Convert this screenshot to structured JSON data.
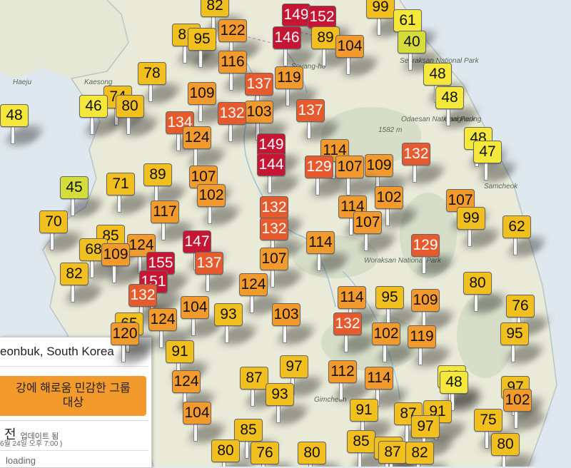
{
  "colors": {
    "good": "#f5e83a",
    "moderate": "#f2c01e",
    "usg": "#f39a2c",
    "unhealthy": "#e65a2e",
    "very_unhealthy": "#c61633",
    "lowmoderate": "#d5dd3a",
    "sea": "#dfe8ee",
    "land": "#e7e9d8",
    "panel_band": "#f39a2c"
  },
  "info_panel": {
    "location": "eonbuk, South Korea",
    "aqi_text_line1": "강에 해로움 민감한 그룹",
    "aqi_text_line2": "대상",
    "updated_main": "전",
    "updated_sub": "업데이트 됨",
    "updated_date": "6월 24일 오후 7:00 )",
    "loading": "loading"
  },
  "place_labels": [
    {
      "text": "Haeju"
    },
    {
      "text": "Kaesong"
    },
    {
      "text": "Soyang-ho"
    },
    {
      "text": "Odaesan National Park"
    },
    {
      "text": "1582 m"
    },
    {
      "text": "Gangneung"
    },
    {
      "text": "Samcheok"
    },
    {
      "text": "Woraksan National Park"
    },
    {
      "text": "Gimcheon"
    },
    {
      "text": "Seoraksan National Park"
    }
  ],
  "markers": [
    {
      "value": "82",
      "level": "moderate"
    },
    {
      "value": "149",
      "level": "very_unhealthy"
    },
    {
      "value": "152",
      "level": "very_unhealthy"
    },
    {
      "value": "99",
      "level": "moderate"
    },
    {
      "value": "61",
      "level": "good"
    },
    {
      "value": "40",
      "level": "lowmoderate"
    },
    {
      "value": "146",
      "level": "very_unhealthy"
    },
    {
      "value": "89",
      "level": "moderate"
    },
    {
      "value": "104",
      "level": "usg"
    },
    {
      "value": "122",
      "level": "usg"
    },
    {
      "value": "95",
      "level": "moderate"
    },
    {
      "value": "81",
      "level": "moderate"
    },
    {
      "value": "116",
      "level": "usg"
    },
    {
      "value": "78",
      "level": "moderate"
    },
    {
      "value": "119",
      "level": "usg"
    },
    {
      "value": "137",
      "level": "unhealthy"
    },
    {
      "value": "48",
      "level": "good"
    },
    {
      "value": "48",
      "level": "good"
    },
    {
      "value": "109",
      "level": "usg"
    },
    {
      "value": "74",
      "level": "moderate"
    },
    {
      "value": "46",
      "level": "good"
    },
    {
      "value": "80",
      "level": "moderate"
    },
    {
      "value": "48",
      "level": "good"
    },
    {
      "value": "132",
      "level": "unhealthy"
    },
    {
      "value": "103",
      "level": "usg"
    },
    {
      "value": "137",
      "level": "unhealthy"
    },
    {
      "value": "134",
      "level": "unhealthy"
    },
    {
      "value": "124",
      "level": "usg"
    },
    {
      "value": "48",
      "level": "good"
    },
    {
      "value": "47",
      "level": "good"
    },
    {
      "value": "149",
      "level": "very_unhealthy"
    },
    {
      "value": "114",
      "level": "usg"
    },
    {
      "value": "132",
      "level": "unhealthy"
    },
    {
      "value": "144",
      "level": "very_unhealthy"
    },
    {
      "value": "129",
      "level": "unhealthy"
    },
    {
      "value": "107",
      "level": "usg"
    },
    {
      "value": "109",
      "level": "usg"
    },
    {
      "value": "89",
      "level": "moderate"
    },
    {
      "value": "107",
      "level": "usg"
    },
    {
      "value": "45",
      "level": "lowmoderate"
    },
    {
      "value": "71",
      "level": "moderate"
    },
    {
      "value": "102",
      "level": "usg"
    },
    {
      "value": "102",
      "level": "usg"
    },
    {
      "value": "107",
      "level": "usg"
    },
    {
      "value": "132",
      "level": "unhealthy"
    },
    {
      "value": "114",
      "level": "usg"
    },
    {
      "value": "99",
      "level": "moderate"
    },
    {
      "value": "70",
      "level": "moderate"
    },
    {
      "value": "117",
      "level": "usg"
    },
    {
      "value": "62",
      "level": "moderate"
    },
    {
      "value": "85",
      "level": "moderate"
    },
    {
      "value": "124",
      "level": "usg"
    },
    {
      "value": "147",
      "level": "very_unhealthy"
    },
    {
      "value": "132",
      "level": "unhealthy"
    },
    {
      "value": "107",
      "level": "usg"
    },
    {
      "value": "114",
      "level": "usg"
    },
    {
      "value": "129",
      "level": "unhealthy"
    },
    {
      "value": "68",
      "level": "moderate"
    },
    {
      "value": "109",
      "level": "usg"
    },
    {
      "value": "155",
      "level": "very_unhealthy"
    },
    {
      "value": "137",
      "level": "unhealthy"
    },
    {
      "value": "107",
      "level": "usg"
    },
    {
      "value": "82",
      "level": "moderate"
    },
    {
      "value": "151",
      "level": "very_unhealthy"
    },
    {
      "value": "124",
      "level": "usg"
    },
    {
      "value": "80",
      "level": "moderate"
    },
    {
      "value": "132",
      "level": "unhealthy"
    },
    {
      "value": "104",
      "level": "usg"
    },
    {
      "value": "114",
      "level": "usg"
    },
    {
      "value": "95",
      "level": "moderate"
    },
    {
      "value": "109",
      "level": "usg"
    },
    {
      "value": "76",
      "level": "moderate"
    },
    {
      "value": "124",
      "level": "usg"
    },
    {
      "value": "93",
      "level": "moderate"
    },
    {
      "value": "103",
      "level": "usg"
    },
    {
      "value": "132",
      "level": "unhealthy"
    },
    {
      "value": "65",
      "level": "moderate"
    },
    {
      "value": "95",
      "level": "moderate"
    },
    {
      "value": "120",
      "level": "usg"
    },
    {
      "value": "102",
      "level": "usg"
    },
    {
      "value": "119",
      "level": "usg"
    },
    {
      "value": "91",
      "level": "moderate"
    },
    {
      "value": "87",
      "level": "moderate"
    },
    {
      "value": "97",
      "level": "moderate"
    },
    {
      "value": "112",
      "level": "usg"
    },
    {
      "value": "114",
      "level": "usg"
    },
    {
      "value": "48",
      "level": "good"
    },
    {
      "value": "124",
      "level": "usg"
    },
    {
      "value": "97",
      "level": "moderate"
    },
    {
      "value": "102",
      "level": "usg"
    },
    {
      "value": "93",
      "level": "moderate"
    },
    {
      "value": "91",
      "level": "moderate"
    },
    {
      "value": "87",
      "level": "moderate"
    },
    {
      "value": "91",
      "level": "moderate"
    },
    {
      "value": "75",
      "level": "moderate"
    },
    {
      "value": "104",
      "level": "usg"
    },
    {
      "value": "97",
      "level": "moderate"
    },
    {
      "value": "85",
      "level": "moderate"
    },
    {
      "value": "89",
      "level": "moderate"
    },
    {
      "value": "80",
      "level": "moderate"
    },
    {
      "value": "80",
      "level": "moderate"
    },
    {
      "value": "76",
      "level": "moderate"
    },
    {
      "value": "80",
      "level": "moderate"
    },
    {
      "value": "82",
      "level": "moderate"
    },
    {
      "value": "85",
      "level": "moderate"
    },
    {
      "value": "87",
      "level": "moderate"
    },
    {
      "value": "48",
      "level": "good"
    }
  ]
}
